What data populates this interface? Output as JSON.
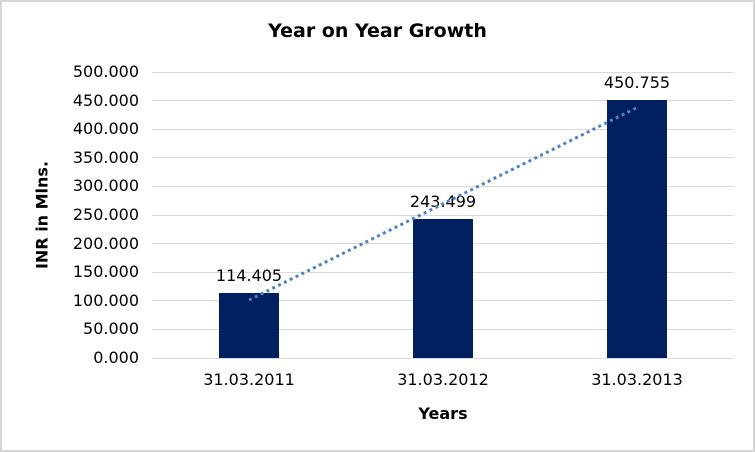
{
  "chart_data": {
    "type": "bar",
    "title": "Year on Year Growth",
    "xlabel": "Years",
    "ylabel": "INR in Mlns.",
    "categories": [
      "31.03.2011",
      "31.03.2012",
      "31.03.2013"
    ],
    "values": [
      114.405,
      243.499,
      450.755
    ],
    "data_labels": [
      "114.405",
      "243.499",
      "450.755"
    ],
    "ylim": [
      0,
      500
    ],
    "ytick_step": 50,
    "ytick_labels": [
      "0.000",
      "50.000",
      "100.000",
      "150.000",
      "200.000",
      "250.000",
      "300.000",
      "350.000",
      "400.000",
      "450.000",
      "500.000"
    ],
    "grid": "horizontal",
    "legend": "none",
    "trendline": {
      "type": "linear",
      "style": "dotted"
    },
    "colors": {
      "bar": "#002060",
      "trendline": "#4f81bd",
      "gridline": "#d9d9d9",
      "text": "#000000",
      "background": "#ffffff",
      "border": "#d6d6d6"
    }
  }
}
